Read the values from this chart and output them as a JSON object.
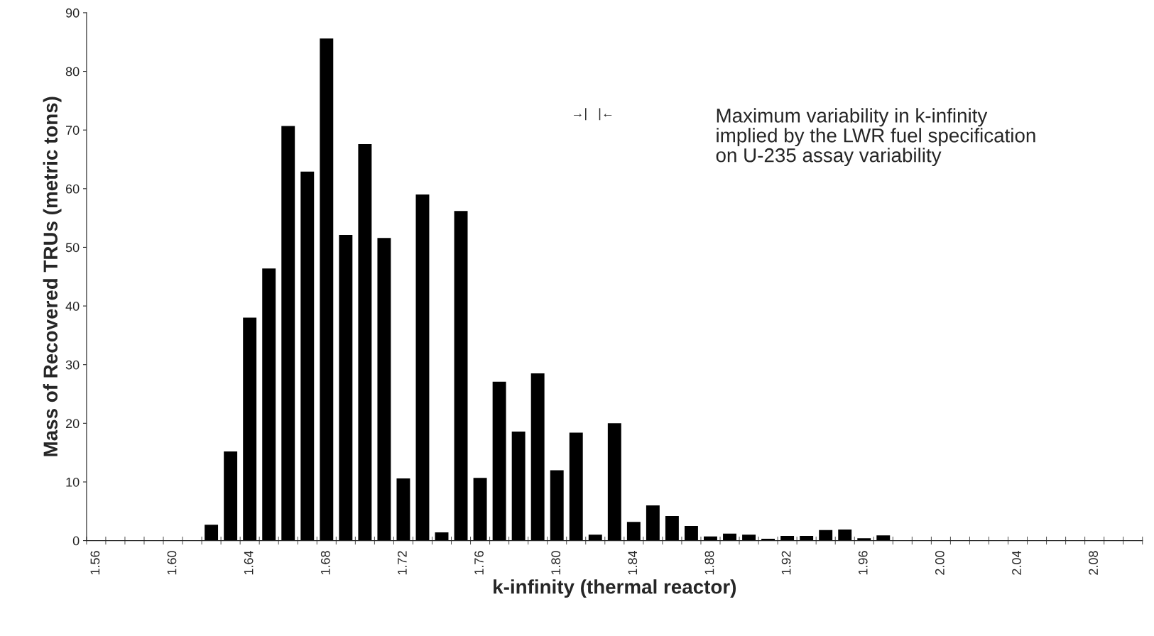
{
  "chart_data": {
    "type": "histogram",
    "xlabel": "k-infinity (thermal reactor)",
    "ylabel": "Mass of Recovered TRUs (metric tons)",
    "bins": [
      1.555,
      1.565,
      1.575,
      1.585,
      1.595,
      1.605,
      1.615,
      1.625,
      1.635,
      1.645,
      1.655,
      1.665,
      1.675,
      1.685,
      1.695,
      1.705,
      1.715,
      1.725,
      1.735,
      1.745,
      1.755,
      1.765,
      1.775,
      1.785,
      1.795,
      1.805,
      1.815,
      1.825,
      1.835,
      1.845,
      1.855,
      1.865,
      1.875,
      1.885,
      1.895,
      1.905,
      1.915,
      1.925,
      1.935,
      1.945,
      1.955,
      1.965,
      1.975,
      1.985,
      1.995,
      2.005,
      2.015,
      2.025,
      2.035,
      2.045,
      2.055,
      2.065,
      2.075,
      2.085,
      2.095,
      2.105
    ],
    "values": [
      0,
      0,
      0,
      0,
      0,
      null,
      2.7,
      15.2,
      38,
      46.4,
      70.7,
      62.9,
      85.6,
      52.1,
      67.6,
      51.6,
      10.6,
      59,
      1.4,
      56.2,
      10.7,
      27.1,
      18.6,
      28.5,
      12,
      18.4,
      1,
      20,
      3.2,
      6,
      4.2,
      2.5,
      0.7,
      1.2,
      1,
      0.3,
      0.8,
      0.8,
      1.8,
      1.9,
      0.4,
      0.9,
      0,
      null,
      0,
      0,
      0,
      0,
      null,
      0,
      0,
      null,
      0,
      0,
      0
    ],
    "color": "#000000",
    "xlim": [
      1.555,
      2.105
    ],
    "xticks": [
      {
        "value": 1.56,
        "label": "1.56"
      },
      {
        "value": 1.6,
        "label": "1.60"
      },
      {
        "value": 1.64,
        "label": "1.64"
      },
      {
        "value": 1.68,
        "label": "1.68"
      },
      {
        "value": 1.72,
        "label": "1.72"
      },
      {
        "value": 1.76,
        "label": "1.76"
      },
      {
        "value": 1.8,
        "label": "1.80"
      },
      {
        "value": 1.84,
        "label": "1.84"
      },
      {
        "value": 1.88,
        "label": "1.88"
      },
      {
        "value": 1.92,
        "label": "1.92"
      },
      {
        "value": 1.96,
        "label": "1.96"
      },
      {
        "value": 2.0,
        "label": "2.00"
      },
      {
        "value": 2.04,
        "label": "2.04"
      },
      {
        "value": 2.08,
        "label": "2.08"
      }
    ],
    "ylim": [
      0,
      90
    ],
    "yticks": [
      0,
      10,
      20,
      30,
      40,
      50,
      60,
      70,
      80,
      90
    ],
    "grid": false,
    "annotations": [
      "→|   |←",
      "Maximum variability in k-infinity\nimplied by the LWR fuel specification\non U-235 assay variability"
    ]
  }
}
